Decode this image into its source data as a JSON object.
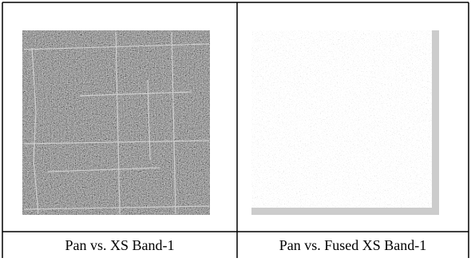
{
  "figure": {
    "panels": [
      {
        "caption": "Pan vs. XS Band-1"
      },
      {
        "caption": "Pan vs. Fused XS Band-1"
      }
    ]
  }
}
